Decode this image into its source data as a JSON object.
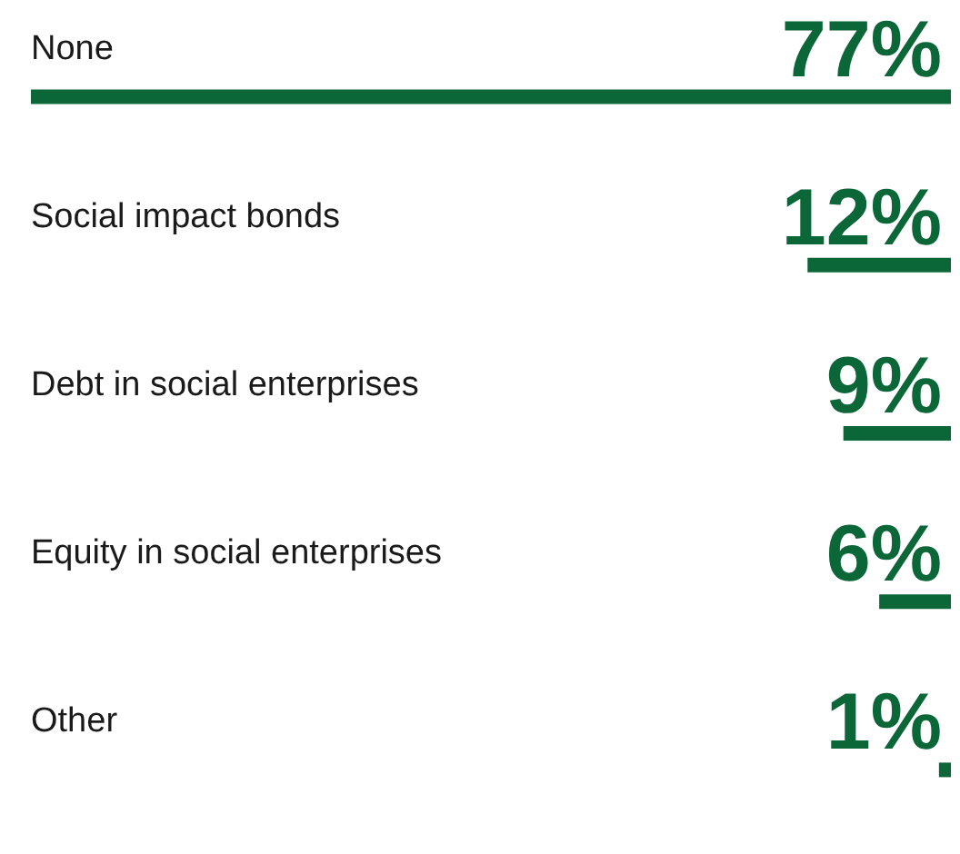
{
  "chart_data": {
    "type": "bar",
    "orientation": "horizontal",
    "categories": [
      "None",
      "Social impact bonds",
      "Debt in social enterprises",
      "Equity in social enterprises",
      "Other"
    ],
    "values": [
      77,
      12,
      9,
      6,
      1
    ],
    "value_labels": [
      "77%",
      "12%",
      "9%",
      "6%",
      "1%"
    ],
    "color": "#0b6638",
    "xlim": [
      77,
      0
    ],
    "tick_labels": "y"
  }
}
